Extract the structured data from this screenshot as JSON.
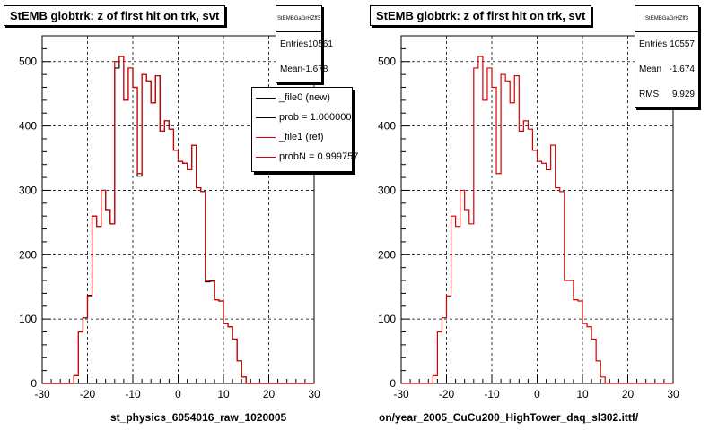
{
  "colors": {
    "new": "#000000",
    "ref": "#d40000",
    "grid": "#000000"
  },
  "left_panel": {
    "title": "StEMB globtrk: z of first hit on trk, svt",
    "stats": {
      "name": "StEMBGaGrHZff3",
      "entries_label": "Entries",
      "entries_value": "10561",
      "mean_label": "Mean",
      "mean_value": "-1.678"
    },
    "legend": [
      {
        "label": "_file0 (new)",
        "color": "#000000"
      },
      {
        "label": "prob = 1.000000",
        "color": "#000000"
      },
      {
        "label": "_file1 (ref)",
        "color": "#d40000"
      },
      {
        "label": "probN = 0.999757",
        "color": "#d40000"
      }
    ],
    "footer": "st_physics_6054016_raw_1020005"
  },
  "right_panel": {
    "title": "StEMB globtrk: z of first hit on trk, svt",
    "stats": {
      "name": "StEMBGaGrHZff3",
      "entries_label": "Entries",
      "entries_value": "10557",
      "mean_label": "Mean",
      "mean_value": "-1.674",
      "rms_label": "RMS",
      "rms_value": "9.929"
    },
    "footer": "on/year_2005_CuCu200_HighTower_daq_sl302.ittf/"
  },
  "chart_data": [
    {
      "type": "line",
      "title": "StEMB globtrk: z of first hit on trk, svt",
      "xlim": [
        -30,
        30
      ],
      "ylim": [
        0,
        540
      ],
      "xticks": [
        -30,
        -20,
        -10,
        0,
        10,
        20,
        30
      ],
      "yticks": [
        0,
        100,
        200,
        300,
        400,
        500
      ],
      "grid": true,
      "legend_position": "top-right",
      "bin_start": -30,
      "bin_width": 1,
      "series": [
        {
          "name": "_file0 (new)",
          "color": "#000000",
          "values": [
            0,
            0,
            0,
            0,
            0,
            0,
            0,
            12,
            80,
            102,
            137,
            260,
            244,
            300,
            270,
            248,
            490,
            508,
            440,
            490,
            460,
            322,
            480,
            470,
            436,
            478,
            392,
            408,
            395,
            362,
            345,
            342,
            332,
            370,
            304,
            298,
            158,
            159,
            130,
            128,
            93,
            88,
            69,
            35,
            10,
            0,
            0,
            0,
            0,
            0,
            0,
            0,
            0,
            0,
            0,
            0,
            0,
            0,
            0,
            0
          ]
        },
        {
          "name": "_file1 (ref)",
          "color": "#d40000",
          "values": [
            0,
            0,
            0,
            0,
            0,
            0,
            0,
            12,
            80,
            102,
            136,
            260,
            244,
            300,
            270,
            248,
            500,
            508,
            440,
            490,
            460,
            326,
            480,
            470,
            436,
            478,
            392,
            408,
            395,
            362,
            345,
            342,
            332,
            370,
            304,
            298,
            160,
            160,
            130,
            128,
            93,
            88,
            69,
            35,
            10,
            0,
            0,
            0,
            0,
            0,
            0,
            0,
            0,
            0,
            0,
            0,
            0,
            0,
            0,
            0
          ]
        }
      ]
    },
    {
      "type": "line",
      "title": "StEMB globtrk: z of first hit on trk, svt",
      "xlim": [
        -30,
        30
      ],
      "ylim": [
        0,
        540
      ],
      "xticks": [
        -30,
        -20,
        -10,
        0,
        10,
        20,
        30
      ],
      "yticks": [
        0,
        100,
        200,
        300,
        400,
        500
      ],
      "grid": true,
      "bin_start": -30,
      "bin_width": 1,
      "series": [
        {
          "color": "#d40000",
          "values": [
            0,
            0,
            0,
            0,
            0,
            0,
            0,
            12,
            80,
            102,
            136,
            260,
            244,
            300,
            270,
            248,
            490,
            508,
            440,
            490,
            460,
            326,
            480,
            470,
            436,
            478,
            392,
            408,
            395,
            362,
            345,
            342,
            332,
            370,
            304,
            298,
            160,
            160,
            130,
            128,
            93,
            88,
            69,
            35,
            10,
            0,
            0,
            0,
            0,
            0,
            0,
            0,
            0,
            0,
            0,
            0,
            0,
            0,
            0,
            0
          ]
        }
      ]
    }
  ]
}
